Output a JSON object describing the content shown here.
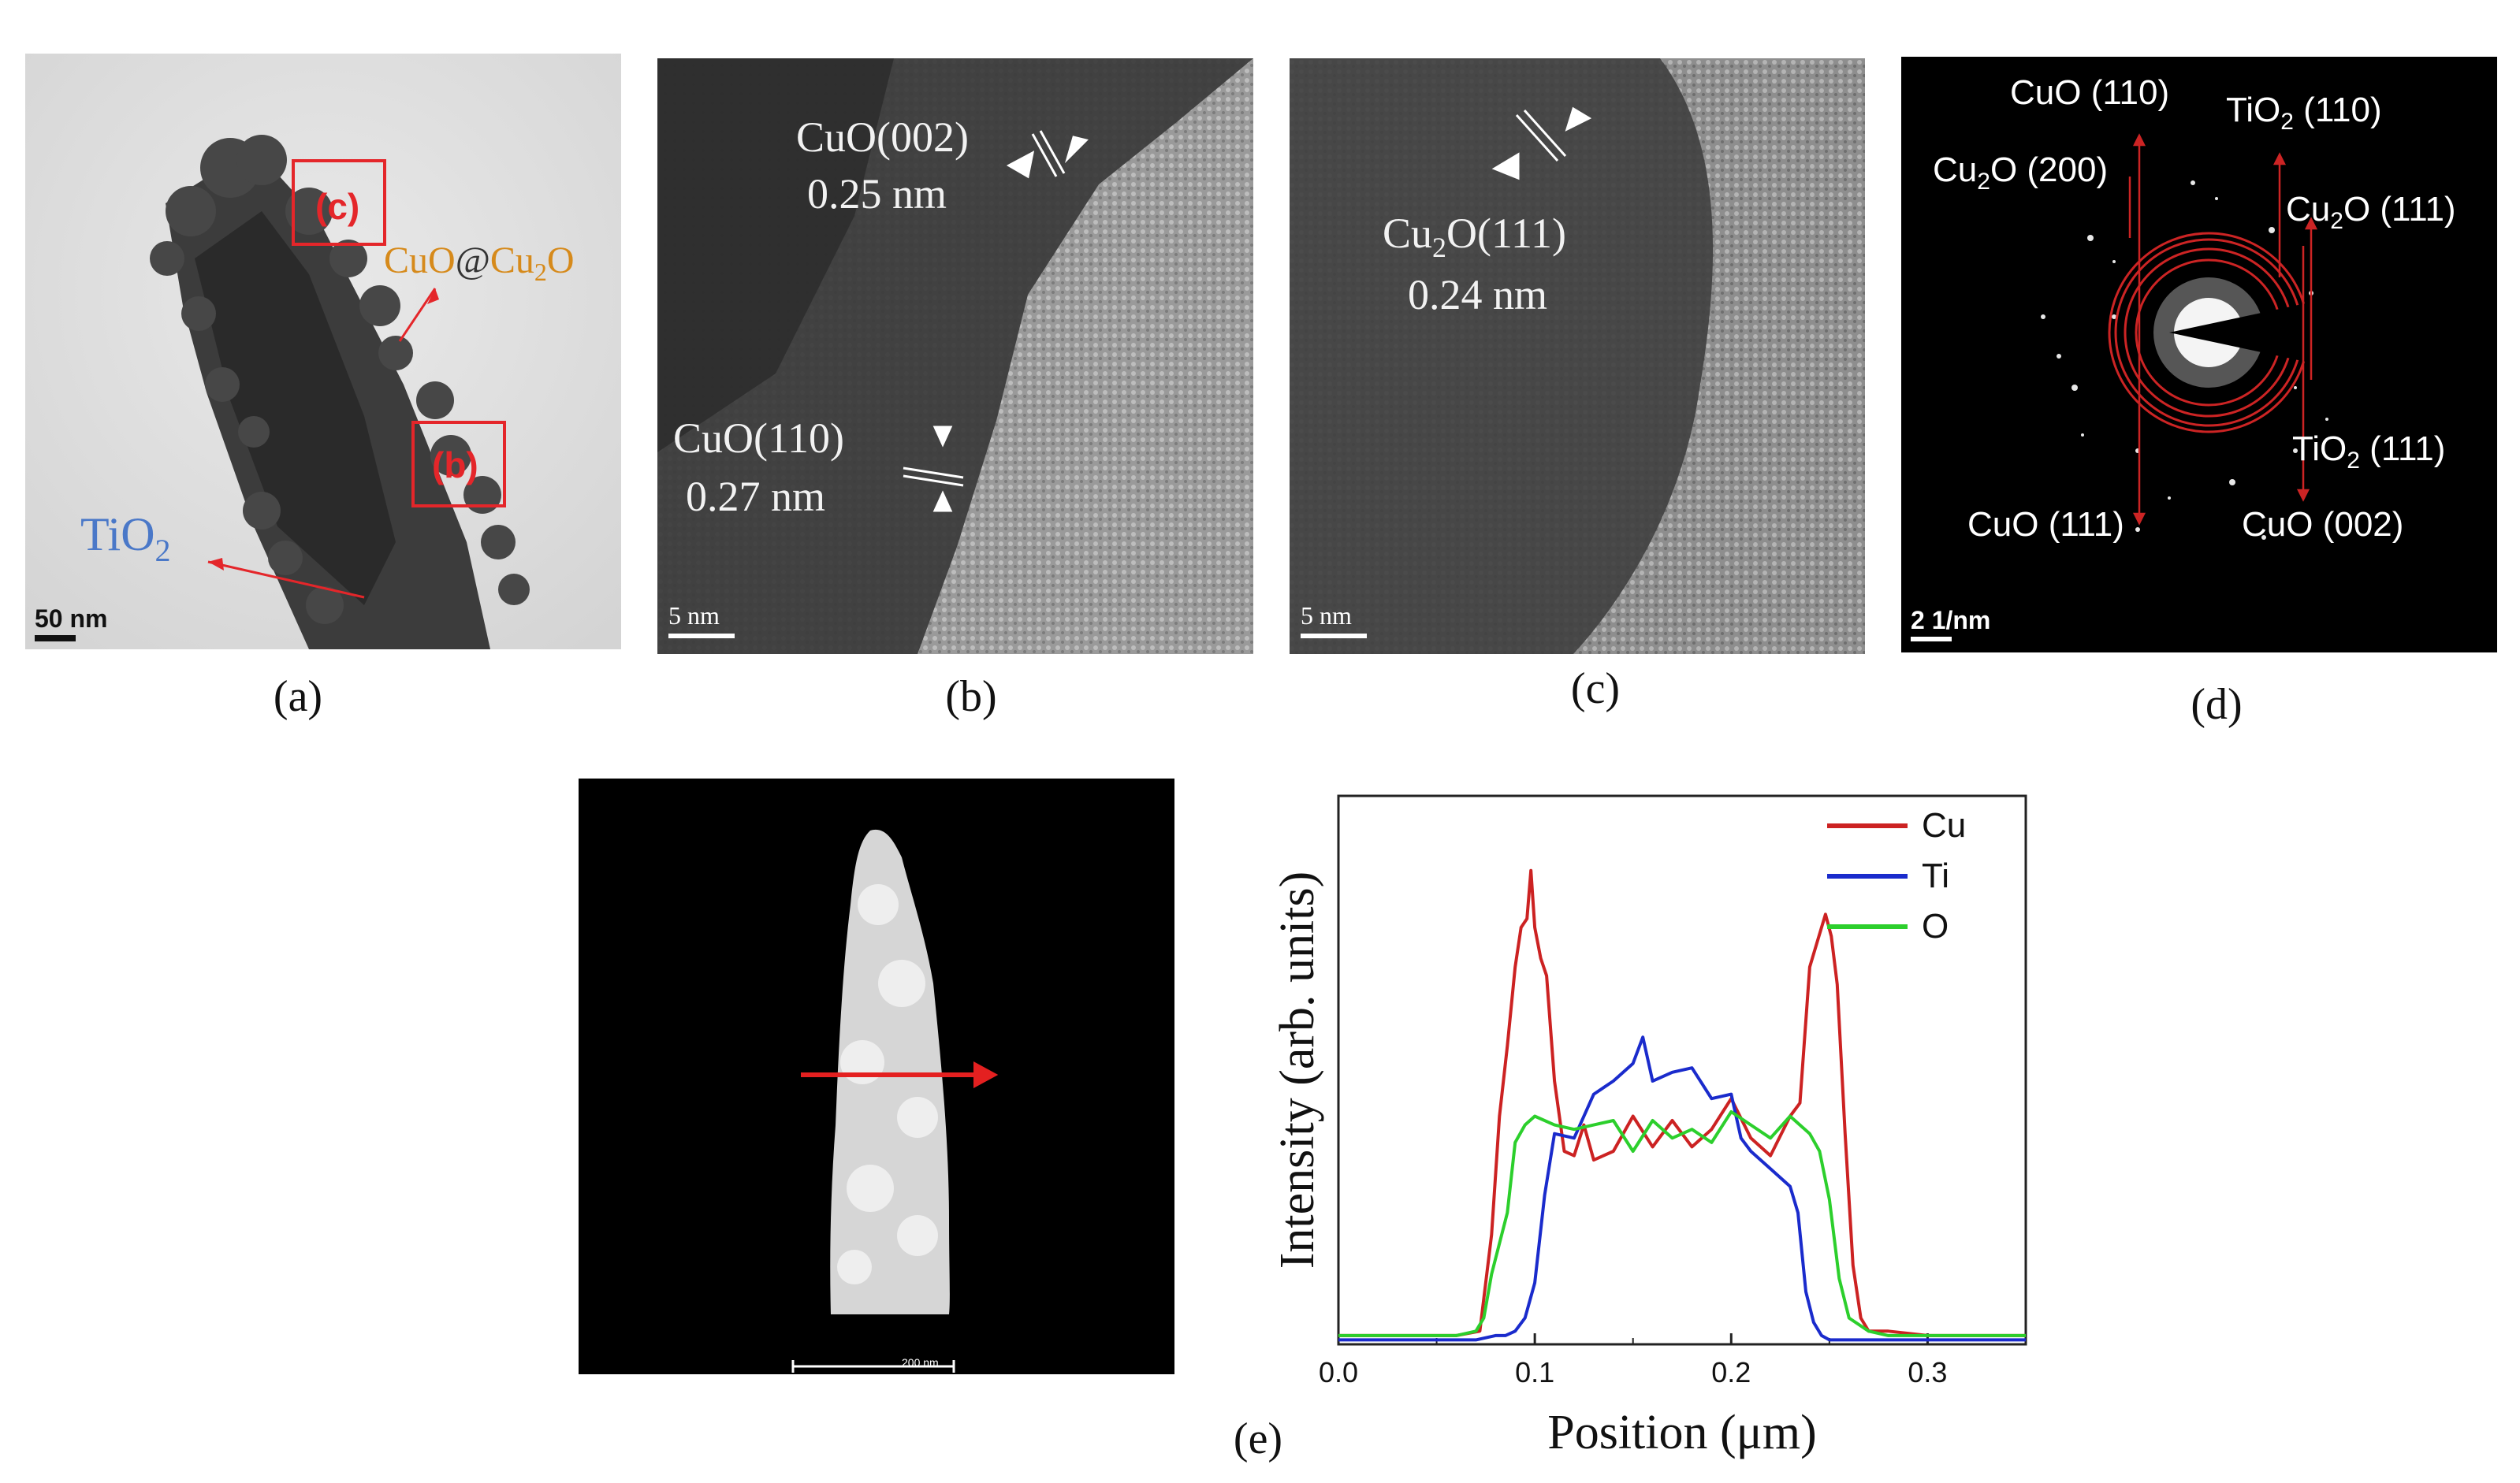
{
  "figure": {
    "panel_a": {
      "caption": "(a)",
      "box_c": "(c)",
      "box_b": "(b)",
      "label_shell_1": "CuO",
      "label_shell_at": "@",
      "label_shell_2": "Cu",
      "label_shell_2_sub": "2",
      "label_shell_3": "O",
      "label_core": "TiO",
      "label_core_sub": "2",
      "scale_bar": "50 nm",
      "colors": {
        "red": "#e4262a",
        "orange": "#d68a1b",
        "blue": "#4a78c8"
      }
    },
    "panel_b": {
      "caption": "(b)",
      "fringe_1_plane": "CuO(002)",
      "fringe_1_spacing": "0.25 nm",
      "fringe_2_plane": "CuO(110)",
      "fringe_2_spacing": "0.27 nm",
      "scale_bar": "5 nm"
    },
    "panel_c": {
      "caption": "(c)",
      "fringe_plane_a": "Cu",
      "fringe_plane_sub": "2",
      "fringe_plane_b": "O(111)",
      "fringe_spacing": "0.24 nm",
      "scale_bar": "5 nm"
    },
    "panel_d": {
      "caption": "(d)",
      "rings": [
        {
          "pre": "CuO (110)",
          "sub": "",
          "post": ""
        },
        {
          "pre": "TiO",
          "sub": "2",
          "post": " (110)"
        },
        {
          "pre": "Cu",
          "sub": "2",
          "post": "O (200)"
        },
        {
          "pre": "Cu",
          "sub": "2",
          "post": "O (111)"
        },
        {
          "pre": "TiO",
          "sub": "2",
          "post": " (111)"
        },
        {
          "pre": "CuO (111)",
          "sub": "",
          "post": ""
        },
        {
          "pre": "CuO (002)",
          "sub": "",
          "post": ""
        }
      ],
      "scale_bar": "2 1/nm"
    },
    "panel_e": {
      "caption": "(e)",
      "stem_scale_bar": "200 nm"
    }
  },
  "chart_data": {
    "type": "line",
    "title": "",
    "xlabel": "Position (μm)",
    "ylabel": "Intensity (arb. units)",
    "xlim": [
      0,
      0.35
    ],
    "ylim": [
      0,
      1.25
    ],
    "xticks": [
      "0.0",
      "0.1",
      "0.2",
      "0.3"
    ],
    "xtick_values": [
      0.0,
      0.1,
      0.2,
      0.3
    ],
    "legend_position": "top-right",
    "series": [
      {
        "name": "Cu",
        "color": "#cc2222",
        "x": [
          0.0,
          0.02,
          0.04,
          0.06,
          0.072,
          0.078,
          0.082,
          0.086,
          0.09,
          0.093,
          0.096,
          0.098,
          0.1,
          0.103,
          0.106,
          0.11,
          0.115,
          0.12,
          0.125,
          0.13,
          0.14,
          0.15,
          0.16,
          0.17,
          0.18,
          0.19,
          0.2,
          0.21,
          0.22,
          0.23,
          0.235,
          0.24,
          0.244,
          0.248,
          0.251,
          0.254,
          0.258,
          0.262,
          0.266,
          0.27,
          0.28,
          0.3,
          0.32,
          0.35
        ],
        "y": [
          0.02,
          0.02,
          0.02,
          0.02,
          0.03,
          0.25,
          0.52,
          0.68,
          0.86,
          0.95,
          0.97,
          1.08,
          0.95,
          0.88,
          0.84,
          0.6,
          0.44,
          0.43,
          0.5,
          0.42,
          0.44,
          0.52,
          0.45,
          0.51,
          0.45,
          0.49,
          0.56,
          0.47,
          0.43,
          0.52,
          0.55,
          0.86,
          0.92,
          0.98,
          0.93,
          0.82,
          0.48,
          0.18,
          0.06,
          0.03,
          0.03,
          0.02,
          0.02,
          0.02
        ]
      },
      {
        "name": "Ti",
        "color": "#1a2bcc",
        "x": [
          0.0,
          0.02,
          0.04,
          0.06,
          0.07,
          0.08,
          0.085,
          0.09,
          0.095,
          0.1,
          0.105,
          0.11,
          0.12,
          0.13,
          0.14,
          0.15,
          0.155,
          0.16,
          0.17,
          0.18,
          0.19,
          0.2,
          0.205,
          0.21,
          0.22,
          0.23,
          0.234,
          0.238,
          0.242,
          0.246,
          0.25,
          0.26,
          0.28,
          0.3,
          0.32,
          0.35
        ],
        "y": [
          0.01,
          0.01,
          0.01,
          0.01,
          0.01,
          0.02,
          0.02,
          0.03,
          0.06,
          0.14,
          0.34,
          0.48,
          0.47,
          0.57,
          0.6,
          0.64,
          0.7,
          0.6,
          0.62,
          0.63,
          0.56,
          0.57,
          0.47,
          0.44,
          0.4,
          0.36,
          0.3,
          0.12,
          0.05,
          0.02,
          0.01,
          0.01,
          0.01,
          0.01,
          0.01,
          0.01
        ]
      },
      {
        "name": "O",
        "color": "#2ccf2c",
        "x": [
          0.0,
          0.02,
          0.04,
          0.06,
          0.07,
          0.074,
          0.078,
          0.082,
          0.086,
          0.09,
          0.095,
          0.1,
          0.11,
          0.12,
          0.13,
          0.14,
          0.15,
          0.16,
          0.17,
          0.18,
          0.19,
          0.2,
          0.21,
          0.22,
          0.23,
          0.24,
          0.245,
          0.25,
          0.255,
          0.26,
          0.27,
          0.28,
          0.3,
          0.32,
          0.35
        ],
        "y": [
          0.02,
          0.02,
          0.02,
          0.02,
          0.03,
          0.06,
          0.16,
          0.23,
          0.3,
          0.46,
          0.5,
          0.52,
          0.5,
          0.49,
          0.5,
          0.51,
          0.44,
          0.51,
          0.47,
          0.49,
          0.46,
          0.53,
          0.5,
          0.47,
          0.52,
          0.48,
          0.44,
          0.33,
          0.15,
          0.06,
          0.03,
          0.02,
          0.02,
          0.02,
          0.02
        ]
      }
    ]
  }
}
